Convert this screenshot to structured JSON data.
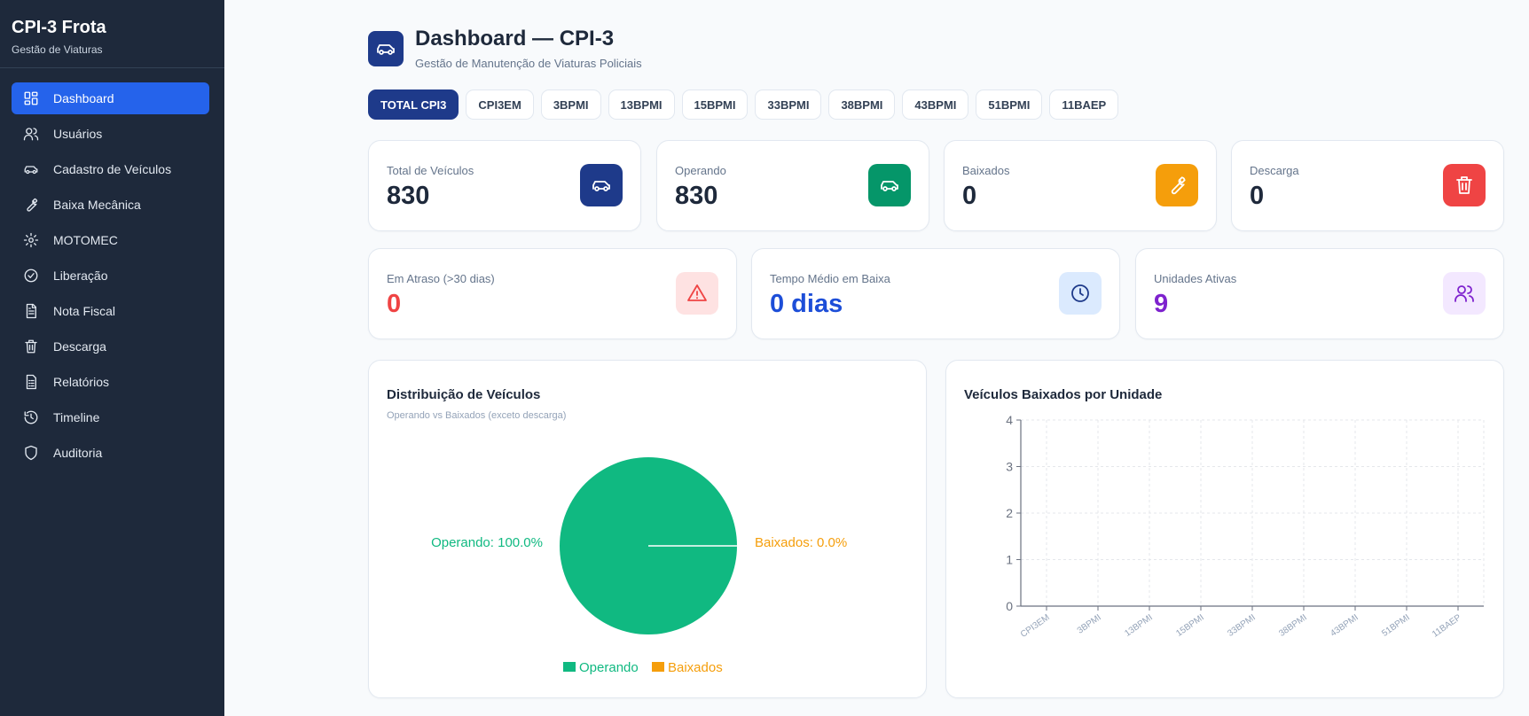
{
  "sidebar": {
    "title": "CPI-3 Frota",
    "subtitle": "Gestão de Viaturas",
    "items": [
      {
        "label": "Dashboard",
        "icon": "dashboard-icon"
      },
      {
        "label": "Usuários",
        "icon": "users-icon"
      },
      {
        "label": "Cadastro de Veículos",
        "icon": "car-icon"
      },
      {
        "label": "Baixa Mecânica",
        "icon": "wrench-icon"
      },
      {
        "label": "MOTOMEC",
        "icon": "gear-icon"
      },
      {
        "label": "Liberação",
        "icon": "check-circle-icon"
      },
      {
        "label": "Nota Fiscal",
        "icon": "document-icon"
      },
      {
        "label": "Descarga",
        "icon": "trash-icon"
      },
      {
        "label": "Relatórios",
        "icon": "report-icon"
      },
      {
        "label": "Timeline",
        "icon": "history-icon"
      },
      {
        "label": "Auditoria",
        "icon": "shield-icon"
      }
    ]
  },
  "header": {
    "title": "Dashboard — CPI-3",
    "subtitle": "Gestão de Manutenção de Viaturas Policiais"
  },
  "filters": [
    "TOTAL CPI3",
    "CPI3EM",
    "3BPMI",
    "13BPMI",
    "15BPMI",
    "33BPMI",
    "38BPMI",
    "43BPMI",
    "51BPMI",
    "11BAEP"
  ],
  "stats": {
    "total": {
      "label": "Total de Veículos",
      "value": "830",
      "color": "#1e3a8a"
    },
    "operando": {
      "label": "Operando",
      "value": "830",
      "color": "#059669"
    },
    "baixados": {
      "label": "Baixados",
      "value": "0",
      "color": "#f59e0b"
    },
    "descarga": {
      "label": "Descarga",
      "value": "0",
      "color": "#ef4444"
    },
    "atraso": {
      "label": "Em Atraso (>30 dias)",
      "value": "0",
      "color": "#ef4444"
    },
    "tempo": {
      "label": "Tempo Médio em Baixa",
      "value": "0 dias",
      "color": "#1d4ed8"
    },
    "unidades": {
      "label": "Unidades Ativas",
      "value": "9",
      "color": "#7e22ce"
    }
  },
  "chart_data": [
    {
      "type": "pie",
      "title": "Distribuição de Veículos",
      "subtitle": "Operando vs Baixados (exceto descarga)",
      "categories": [
        "Operando",
        "Baixados"
      ],
      "values": [
        100.0,
        0.0
      ],
      "slice_labels": [
        "Operando: 100.0%",
        "Baixados: 0.0%"
      ],
      "colors": [
        "#10b981",
        "#f59e0b"
      ],
      "legend": "bottom"
    },
    {
      "type": "bar",
      "title": "Veículos Baixados por Unidade",
      "categories": [
        "CPI3EM",
        "3BPMI",
        "13BPMI",
        "15BPMI",
        "33BPMI",
        "38BPMI",
        "43BPMI",
        "51BPMI",
        "11BAEP"
      ],
      "values": [
        0,
        0,
        0,
        0,
        0,
        0,
        0,
        0,
        0
      ],
      "ylim": [
        0,
        4
      ],
      "yticks": [
        "0",
        "1",
        "2",
        "3",
        "4"
      ],
      "grid": true
    }
  ]
}
